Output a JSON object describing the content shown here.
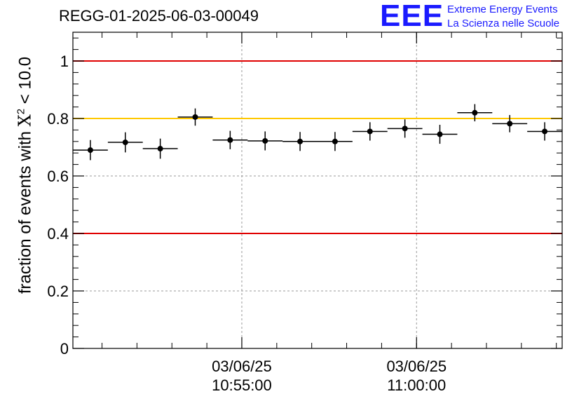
{
  "header": {
    "run_title": "REGG-01-2025-06-03-00049",
    "logo_text": "EEE",
    "logo_line1": "Extreme Energy Events",
    "logo_line2": "La Scienza nelle Scuole"
  },
  "colors": {
    "points": "#000000",
    "limit_red": "#e00000",
    "limit_yellow": "#ffc800",
    "logo": "#1a1aff",
    "grid": "#9a9a9a"
  },
  "chart_data": {
    "type": "scatter",
    "title": "REGG-01-2025-06-03-00049",
    "ylabel_prefix": "fraction of events with ",
    "ylabel_symbol": "X",
    "ylabel_sup": "2",
    "ylabel_suffix": " < 10.0",
    "xlabel": "",
    "ylim": [
      0,
      1.1
    ],
    "yticks": [
      0,
      0.2,
      0.4,
      0.6,
      0.8,
      1
    ],
    "ytick_labels": [
      "0",
      "0.2",
      "0.4",
      "0.6",
      "0.8",
      "1"
    ],
    "xlim": [
      "10:50:10",
      "11:04:10"
    ],
    "xticks": [
      {
        "time": "10:55:00",
        "date": "03/06/25",
        "label": "10:55:00"
      },
      {
        "time": "11:00:00",
        "date": "03/06/25",
        "label": "11:00:00"
      }
    ],
    "grid": true,
    "reference_lines": [
      {
        "y": 1.0,
        "color": "red"
      },
      {
        "y": 0.8,
        "color": "yellow"
      },
      {
        "y": 0.4,
        "color": "red"
      }
    ],
    "points": [
      {
        "x": "10:50:40",
        "y": 0.69,
        "xerr_start": "10:50:10",
        "xerr_end": "10:51:10",
        "yerr": 0.035
      },
      {
        "x": "10:51:40",
        "y": 0.717,
        "xerr_start": "10:51:10",
        "xerr_end": "10:52:10",
        "yerr": 0.035
      },
      {
        "x": "10:52:40",
        "y": 0.695,
        "xerr_start": "10:52:10",
        "xerr_end": "10:53:10",
        "yerr": 0.035
      },
      {
        "x": "10:53:40",
        "y": 0.805,
        "xerr_start": "10:53:10",
        "xerr_end": "10:54:10",
        "yerr": 0.03
      },
      {
        "x": "10:54:40",
        "y": 0.725,
        "xerr_start": "10:54:10",
        "xerr_end": "10:55:10",
        "yerr": 0.032
      },
      {
        "x": "10:55:40",
        "y": 0.722,
        "xerr_start": "10:55:10",
        "xerr_end": "10:56:10",
        "yerr": 0.033
      },
      {
        "x": "10:56:40",
        "y": 0.72,
        "xerr_start": "10:56:10",
        "xerr_end": "10:57:10",
        "yerr": 0.033
      },
      {
        "x": "10:57:40",
        "y": 0.72,
        "xerr_start": "10:57:10",
        "xerr_end": "10:58:10",
        "yerr": 0.033
      },
      {
        "x": "10:58:40",
        "y": 0.755,
        "xerr_start": "10:58:10",
        "xerr_end": "10:59:10",
        "yerr": 0.032
      },
      {
        "x": "10:59:40",
        "y": 0.765,
        "xerr_start": "10:59:10",
        "xerr_end": "11:00:10",
        "yerr": 0.032
      },
      {
        "x": "11:00:40",
        "y": 0.745,
        "xerr_start": "11:00:10",
        "xerr_end": "11:01:10",
        "yerr": 0.033
      },
      {
        "x": "11:01:40",
        "y": 0.82,
        "xerr_start": "11:01:10",
        "xerr_end": "11:02:10",
        "yerr": 0.03
      },
      {
        "x": "11:02:40",
        "y": 0.782,
        "xerr_start": "11:02:10",
        "xerr_end": "11:03:10",
        "yerr": 0.03
      },
      {
        "x": "11:03:40",
        "y": 0.755,
        "xerr_start": "11:03:10",
        "xerr_end": "11:04:10",
        "yerr": 0.032
      }
    ]
  }
}
